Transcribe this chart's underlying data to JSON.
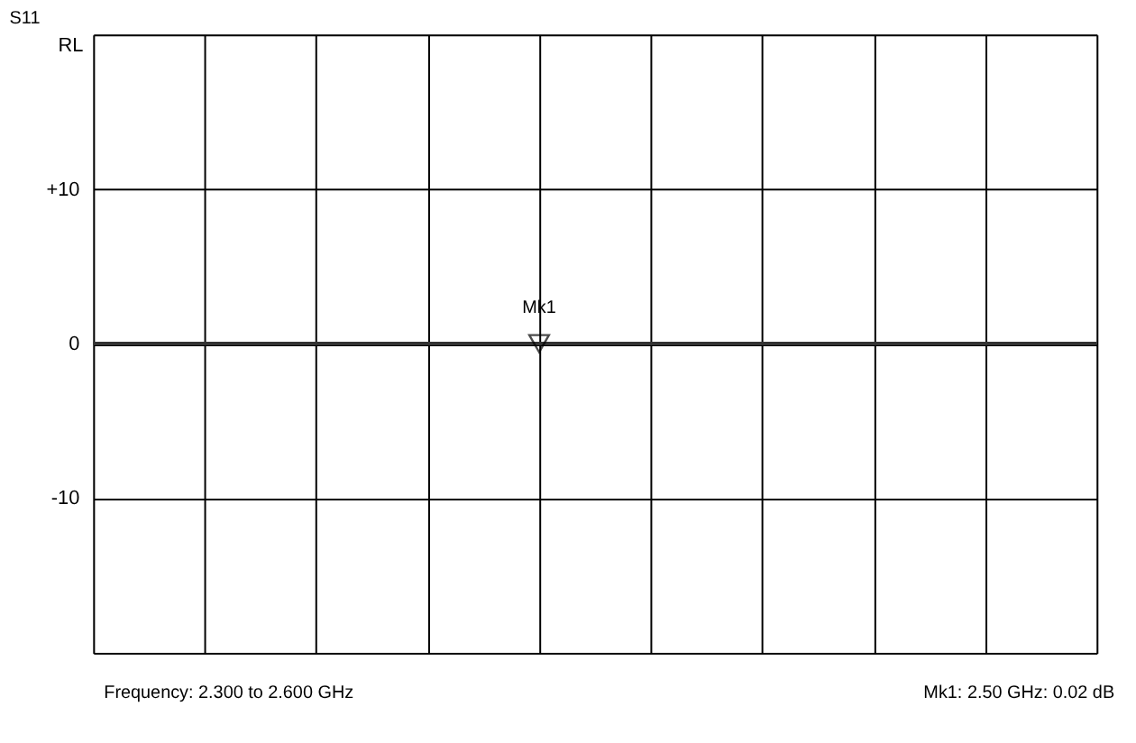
{
  "chart_data": {
    "type": "line",
    "title": "S11",
    "ylabel": "RL",
    "categories": [
      null,
      null,
      null,
      null,
      null,
      null,
      null,
      null,
      null,
      null
    ],
    "series": [
      {
        "color": "#333333",
        "values": [
          0,
          0,
          0,
          0,
          0,
          0,
          0,
          0,
          0,
          0
        ]
      },
      {
        "type": "scatter",
        "name": "Mk1",
        "color": "#000000",
        "marker": "triangle",
        "values": [
          null,
          null,
          null,
          null,
          0,
          null,
          null,
          null,
          null,
          null
        ]
      }
    ],
    "ylim": [
      -20,
      20
    ],
    "yticks": [
      {
        "value": -20,
        "label": null
      },
      {
        "value": -10,
        "label": "-10"
      },
      {
        "value": 0,
        "label": "0"
      },
      {
        "value": 10,
        "label": "+10"
      },
      {
        "value": 20,
        "label": null
      }
    ],
    "tick_labels": "y",
    "grid": true,
    "marker": "none",
    "line_style": "solid",
    "annotations": [
      "Frequency: 2.300 to 2.600 GHz",
      "Mk1: 2.50 GHz: 0.02 dB"
    ]
  }
}
